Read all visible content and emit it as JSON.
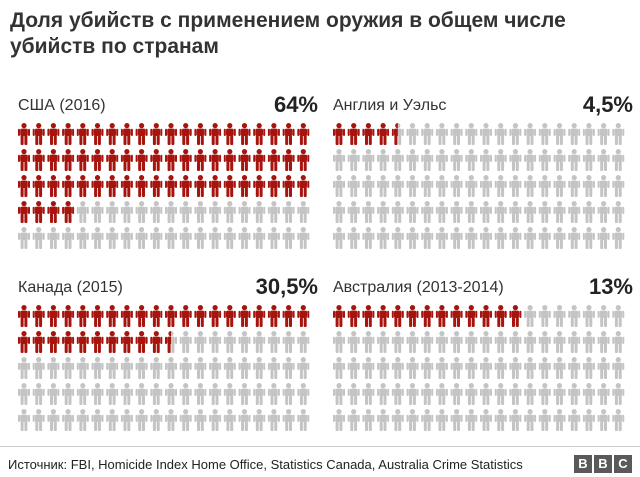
{
  "title": "Доля убийств с применением оружия в общем числе убийств по странам",
  "source": "Источник: FBI, Homicide Index Home Office, Statistics Canada, Australia Crime Statistics",
  "logo": [
    "B",
    "B",
    "C"
  ],
  "colors": {
    "highlight": "#a6140d",
    "base": "#c4c4c4"
  },
  "icon": "person-icon",
  "chart_data": [
    {
      "type": "pictogram",
      "label": "США (2016)",
      "value_label": "64%",
      "value": 64,
      "total": 100
    },
    {
      "type": "pictogram",
      "label": "Англия и Уэльс",
      "value_label": "4,5%",
      "value": 4.5,
      "total": 100
    },
    {
      "type": "pictogram",
      "label": "Канада (2015)",
      "value_label": "30,5%",
      "value": 30.5,
      "total": 100
    },
    {
      "type": "pictogram",
      "label": "Австралия (2013-2014)",
      "value_label": "13%",
      "value": 13,
      "total": 100
    }
  ]
}
